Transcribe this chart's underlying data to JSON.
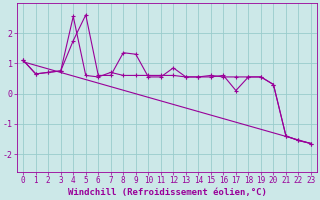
{
  "xlabel": "Windchill (Refroidissement éolien,°C)",
  "bg_color": "#cce8e8",
  "line_color": "#990099",
  "grid_color": "#99cccc",
  "xlim": [
    -0.5,
    23.5
  ],
  "ylim": [
    -2.6,
    3.0
  ],
  "yticks": [
    -2,
    -1,
    0,
    1,
    2
  ],
  "xticks": [
    0,
    1,
    2,
    3,
    4,
    5,
    6,
    7,
    8,
    9,
    10,
    11,
    12,
    13,
    14,
    15,
    16,
    17,
    18,
    19,
    20,
    21,
    22,
    23
  ],
  "series1_x": [
    0,
    1,
    2,
    3,
    4,
    5,
    6,
    7,
    8,
    9,
    10,
    11,
    12,
    13,
    14,
    15,
    16,
    17,
    18,
    19,
    20,
    21,
    22,
    23
  ],
  "series1_y": [
    1.1,
    0.65,
    0.7,
    0.75,
    1.75,
    2.6,
    0.6,
    0.6,
    1.35,
    1.3,
    0.55,
    0.55,
    0.85,
    0.55,
    0.55,
    0.55,
    0.6,
    0.1,
    0.55,
    0.55,
    0.3,
    -1.4,
    -1.55,
    -1.65
  ],
  "series2_x": [
    0,
    1,
    2,
    3,
    4,
    5,
    6,
    7,
    8,
    9,
    10,
    11,
    12,
    13,
    14,
    15,
    16,
    17,
    18,
    19,
    20,
    21,
    22,
    23
  ],
  "series2_y": [
    1.1,
    0.65,
    0.7,
    0.75,
    2.55,
    0.6,
    0.55,
    0.7,
    0.6,
    0.6,
    0.6,
    0.6,
    0.6,
    0.55,
    0.55,
    0.6,
    0.55,
    0.55,
    0.55,
    0.55,
    0.3,
    -1.4,
    -1.55,
    -1.65
  ],
  "trend_x": [
    0,
    23
  ],
  "trend_y": [
    1.05,
    -1.65
  ],
  "xlabel_fontsize": 6.5,
  "tick_fontsize": 5.5,
  "xlabel_fontweight": "bold"
}
